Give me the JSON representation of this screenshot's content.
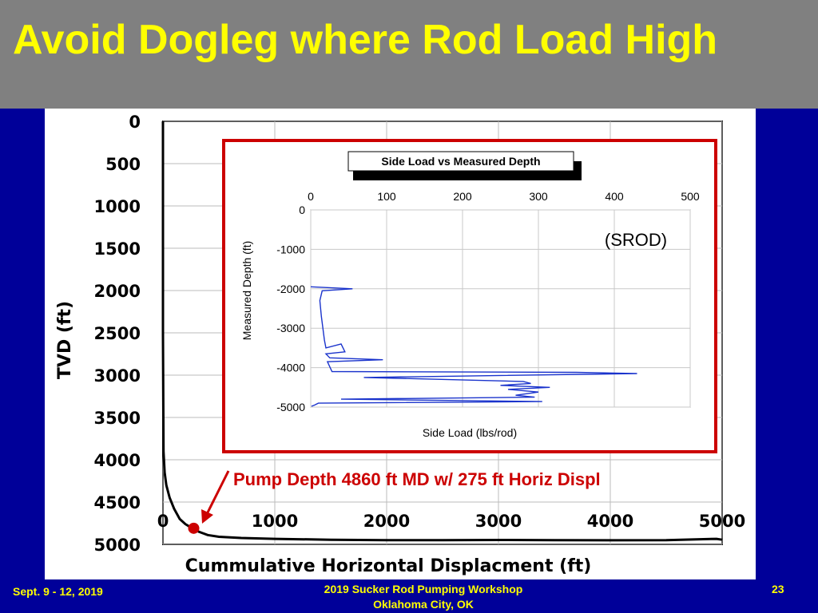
{
  "slide": {
    "title": "Avoid Dogleg where Rod Load High",
    "footer_left": "Sept. 9 - 12, 2019",
    "footer_center_line1": "2019 Sucker Rod Pumping Workshop",
    "footer_center_line2": "Oklahoma City, OK",
    "page_number": "23"
  },
  "colors": {
    "background": "#000099",
    "title_bar": "#808080",
    "title_text": "#ffff00",
    "annotation": "#cc0000",
    "trace_main": "#000000",
    "trace_inset": "#1a33cc"
  },
  "annotation": {
    "text": "Pump Depth 4860 ft MD w/ 275 ft Horiz Displ"
  },
  "chart_data": [
    {
      "type": "line",
      "title": "",
      "xlabel": "Cummulative Horizontal Displacment (ft)",
      "ylabel": "TVD (ft)",
      "xlim": [
        0,
        5000
      ],
      "ylim": [
        0,
        5000
      ],
      "y_inverted": true,
      "grid": true,
      "x_ticks": [
        "0",
        "1000",
        "2000",
        "3000",
        "4000",
        "5000"
      ],
      "y_ticks": [
        "0",
        "500",
        "1000",
        "1500",
        "2000",
        "2500",
        "3000",
        "3500",
        "4000",
        "4500",
        "5000"
      ],
      "series": [
        {
          "x": [
            0,
            0,
            0,
            5,
            15,
            30,
            60,
            100,
            150,
            200,
            250,
            275,
            320,
            400,
            500,
            700,
            1000,
            1500,
            2000,
            2500,
            3000,
            3500,
            4000,
            4500,
            4800,
            4950,
            5000
          ],
          "y": [
            0,
            1000,
            2500,
            3900,
            4150,
            4300,
            4450,
            4580,
            4700,
            4760,
            4800,
            4820,
            4850,
            4890,
            4910,
            4925,
            4935,
            4945,
            4950,
            4950,
            4948,
            4950,
            4952,
            4950,
            4940,
            4935,
            4945
          ]
        }
      ],
      "marker": {
        "x": 275,
        "y": 4810
      }
    },
    {
      "type": "line",
      "title": "Side Load vs Measured Depth",
      "xlabel": "Side Load (lbs/rod)",
      "ylabel": "Measured Depth (ft)",
      "xlim": [
        0,
        500
      ],
      "ylim": [
        -5000,
        0
      ],
      "x_ticks": [
        "0",
        "100",
        "200",
        "300",
        "400",
        "500"
      ],
      "y_ticks": [
        "0",
        "-1000",
        "-2000",
        "-3000",
        "-4000",
        "-5000"
      ],
      "grid": true,
      "annotation": "(SROD)",
      "series": [
        {
          "x": [
            0,
            55,
            15,
            12,
            14,
            16,
            18,
            20,
            40,
            45,
            20,
            25,
            95,
            22,
            28,
            350,
            430,
            70,
            280,
            290,
            250,
            315,
            260,
            300,
            270,
            295,
            40,
            305,
            10,
            5,
            1
          ],
          "y": [
            -1950,
            -2000,
            -2050,
            -2300,
            -2700,
            -3000,
            -3300,
            -3500,
            -3400,
            -3600,
            -3650,
            -3750,
            -3800,
            -3850,
            -4100,
            -4120,
            -4150,
            -4250,
            -4350,
            -4400,
            -4450,
            -4500,
            -4550,
            -4620,
            -4700,
            -4750,
            -4800,
            -4860,
            -4900,
            -4950,
            -4980
          ]
        }
      ]
    }
  ]
}
